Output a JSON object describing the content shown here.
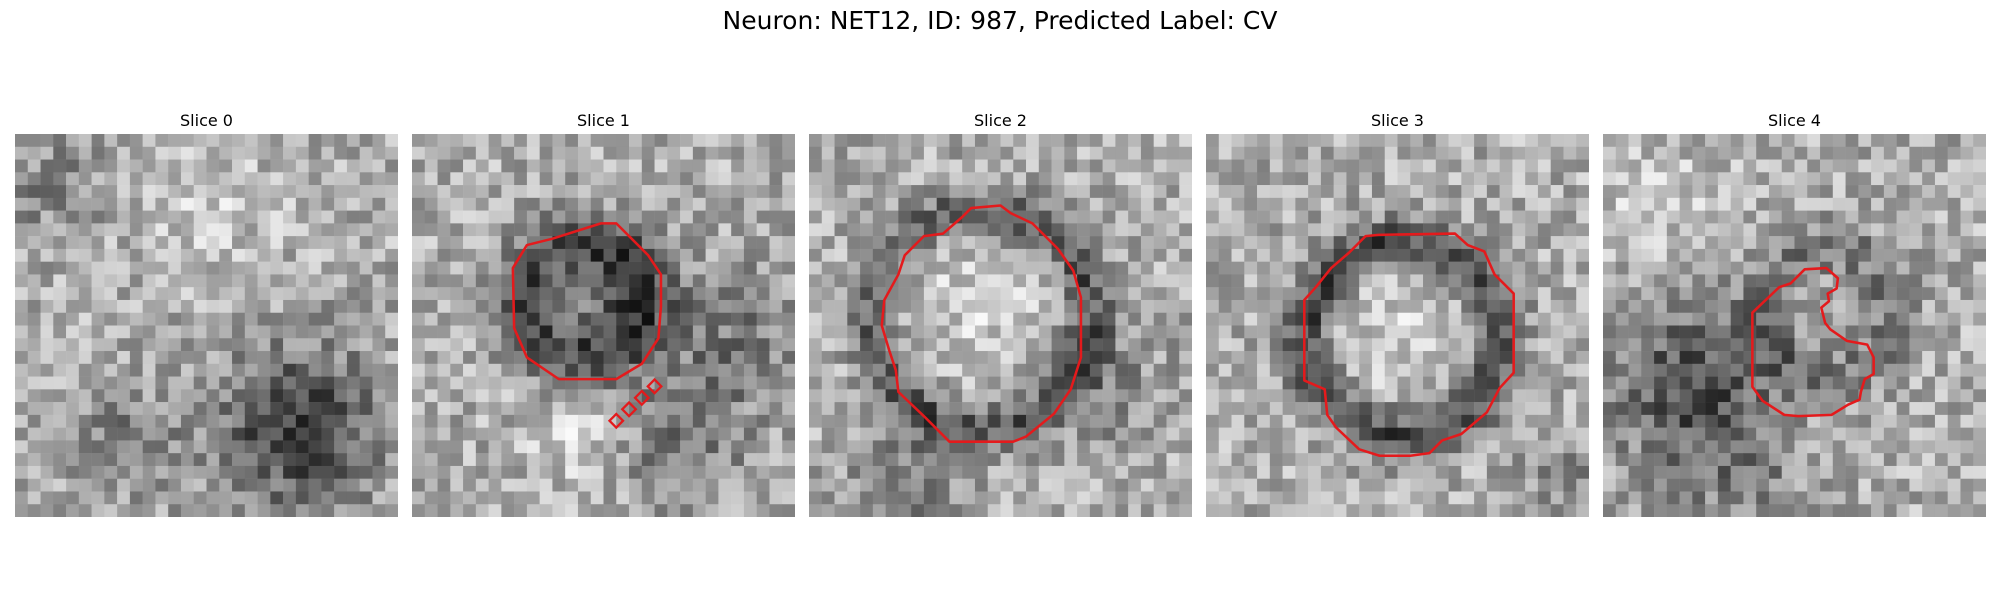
{
  "figure": {
    "title": "Neuron: NET12, ID: 987, Predicted Label: CV",
    "contour_color": "#e41a1c",
    "panels": [
      {
        "title": "Slice 0",
        "seed": 11
      },
      {
        "title": "Slice 1",
        "seed": 23
      },
      {
        "title": "Slice 2",
        "seed": 37
      },
      {
        "title": "Slice 3",
        "seed": 51
      },
      {
        "title": "Slice 4",
        "seed": 67
      }
    ]
  }
}
